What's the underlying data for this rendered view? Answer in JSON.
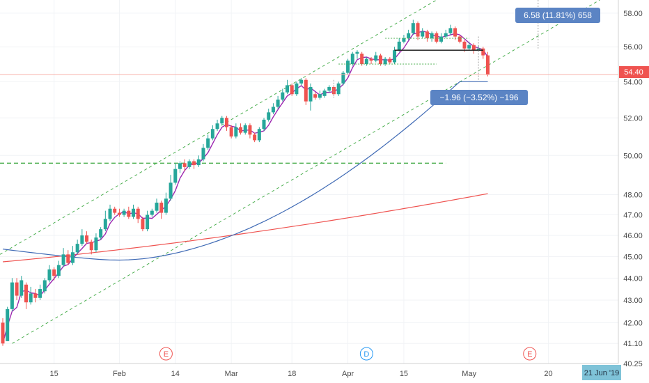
{
  "chart_data": {
    "type": "candlestick",
    "price_scale": "log",
    "ylim": [
      40.25,
      58.8
    ],
    "y_ticks": [
      "58.00",
      "56.00",
      "54.00",
      "52.00",
      "50.00",
      "48.00",
      "47.00",
      "46.00",
      "45.00",
      "44.00",
      "43.00",
      "42.00",
      "41.10",
      "40.25"
    ],
    "x_tick_labels": [
      "15",
      "Feb",
      "14",
      "Mar",
      "18",
      "Apr",
      "15",
      "May",
      "20"
    ],
    "x_tick_bars": [
      11,
      25,
      37,
      49,
      62,
      74,
      86,
      100,
      117
    ],
    "bars_total": 133,
    "current_price": "54.40",
    "current_price_value": 54.4,
    "date_badge": "21 Jun '19",
    "measure_up": "6.58 (11.81%) 658",
    "measure_down": "−1.96 (−3.52%) −196",
    "events": [
      {
        "label": "E",
        "bar": 35,
        "color": "#ef5350"
      },
      {
        "label": "D",
        "bar": 78,
        "color": "#2196f3"
      },
      {
        "label": "E",
        "bar": 113,
        "color": "#ef5350"
      }
    ],
    "colors": {
      "up": "#26a69a",
      "down": "#ef5350",
      "ma_short": "#9c27b0",
      "ma_mid": "#3f6ab5",
      "ma_long": "#ef5350",
      "channel": "#4caf50",
      "badge_price": "#ef5350",
      "badge_measure": "#5b84c4",
      "badge_date": "#7fc3d8"
    },
    "candles": [
      [
        42.0,
        41.1,
        42.2,
        41.0
      ],
      [
        41.2,
        42.6,
        42.7,
        41.2
      ],
      [
        42.6,
        43.8,
        44.0,
        42.5
      ],
      [
        43.8,
        43.2,
        44.0,
        43.0
      ],
      [
        43.2,
        43.9,
        44.1,
        43.1
      ],
      [
        43.7,
        42.9,
        43.8,
        42.6
      ],
      [
        42.9,
        43.3,
        43.6,
        42.8
      ],
      [
        43.3,
        43.1,
        43.5,
        42.9
      ],
      [
        43.1,
        43.5,
        43.7,
        43.0
      ],
      [
        43.4,
        43.9,
        44.0,
        43.3
      ],
      [
        43.9,
        44.4,
        44.6,
        43.8
      ],
      [
        44.4,
        44.1,
        44.5,
        43.9
      ],
      [
        44.1,
        44.6,
        44.8,
        44.0
      ],
      [
        44.6,
        45.1,
        45.4,
        44.5
      ],
      [
        45.1,
        44.7,
        45.3,
        44.6
      ],
      [
        44.7,
        45.2,
        45.5,
        44.6
      ],
      [
        45.2,
        45.6,
        45.8,
        45.1
      ],
      [
        45.6,
        46.0,
        46.3,
        45.5
      ],
      [
        46.0,
        45.7,
        46.2,
        45.6
      ],
      [
        45.7,
        45.3,
        45.8,
        45.1
      ],
      [
        45.3,
        45.9,
        46.1,
        45.2
      ],
      [
        45.9,
        46.3,
        46.4,
        45.8
      ],
      [
        46.3,
        46.8,
        47.2,
        46.2
      ],
      [
        46.8,
        47.3,
        47.5,
        46.7
      ],
      [
        47.3,
        47.1,
        47.4,
        47.0
      ],
      [
        47.1,
        47.0,
        47.3,
        46.9
      ],
      [
        47.0,
        47.2,
        47.3,
        46.9
      ],
      [
        47.2,
        46.9,
        47.4,
        46.8
      ],
      [
        46.9,
        47.3,
        47.5,
        46.8
      ],
      [
        47.3,
        46.8,
        47.4,
        46.6
      ],
      [
        46.8,
        46.3,
        46.9,
        46.2
      ],
      [
        46.3,
        47.0,
        47.2,
        46.2
      ],
      [
        47.0,
        47.2,
        47.3,
        46.9
      ],
      [
        47.2,
        47.6,
        47.8,
        47.1
      ],
      [
        47.6,
        47.1,
        47.7,
        46.8
      ],
      [
        47.1,
        47.8,
        48.1,
        47.0
      ],
      [
        47.8,
        48.6,
        49.0,
        47.7
      ],
      [
        48.6,
        49.3,
        49.6,
        48.5
      ],
      [
        49.3,
        49.6,
        49.7,
        49.1
      ],
      [
        49.6,
        49.4,
        49.8,
        49.2
      ],
      [
        49.4,
        49.7,
        49.8,
        49.3
      ],
      [
        49.7,
        49.5,
        49.8,
        49.3
      ],
      [
        49.5,
        49.8,
        50.0,
        49.4
      ],
      [
        49.8,
        50.4,
        50.6,
        49.7
      ],
      [
        50.4,
        50.9,
        51.1,
        50.3
      ],
      [
        50.9,
        51.4,
        51.6,
        50.8
      ],
      [
        51.4,
        51.7,
        51.9,
        51.3
      ],
      [
        51.7,
        52.0,
        52.1,
        51.6
      ],
      [
        52.0,
        51.5,
        52.1,
        51.3
      ],
      [
        51.5,
        51.0,
        51.6,
        50.9
      ],
      [
        51.0,
        51.5,
        51.7,
        50.9
      ],
      [
        51.5,
        51.2,
        51.7,
        51.1
      ],
      [
        51.2,
        51.6,
        51.7,
        51.1
      ],
      [
        51.6,
        51.1,
        51.7,
        50.9
      ],
      [
        51.1,
        50.8,
        51.2,
        50.7
      ],
      [
        50.8,
        51.4,
        51.5,
        50.7
      ],
      [
        51.4,
        51.9,
        52.0,
        51.3
      ],
      [
        51.9,
        52.3,
        52.5,
        51.8
      ],
      [
        52.3,
        52.6,
        52.8,
        52.2
      ],
      [
        52.6,
        53.0,
        53.2,
        52.5
      ],
      [
        53.0,
        53.4,
        53.6,
        52.9
      ],
      [
        53.4,
        53.8,
        54.1,
        53.3
      ],
      [
        53.8,
        53.3,
        53.9,
        53.2
      ],
      [
        53.3,
        53.9,
        54.0,
        53.2
      ],
      [
        53.9,
        54.1,
        54.2,
        53.8
      ],
      [
        54.1,
        52.9,
        54.2,
        52.7
      ],
      [
        52.9,
        53.7,
        53.9,
        52.4
      ],
      [
        53.3,
        53.1,
        53.4,
        53.0
      ],
      [
        53.1,
        53.3,
        53.5,
        53.0
      ],
      [
        53.2,
        53.5,
        53.6,
        53.1
      ],
      [
        53.5,
        53.7,
        53.8,
        53.4
      ],
      [
        53.7,
        53.3,
        53.8,
        53.2
      ],
      [
        53.3,
        53.9,
        54.0,
        53.2
      ],
      [
        53.9,
        54.5,
        54.6,
        53.8
      ],
      [
        54.5,
        55.2,
        55.3,
        54.4
      ],
      [
        55.0,
        55.6,
        55.7,
        54.9
      ],
      [
        55.6,
        55.7,
        55.8,
        55.3
      ],
      [
        55.6,
        55.0,
        55.7,
        54.9
      ],
      [
        55.0,
        55.3,
        55.4,
        54.9
      ],
      [
        55.3,
        55.2,
        55.4,
        55.0
      ],
      [
        55.2,
        55.5,
        55.7,
        55.1
      ],
      [
        55.5,
        55.0,
        55.6,
        54.9
      ],
      [
        55.0,
        55.3,
        55.4,
        54.9
      ],
      [
        55.3,
        55.1,
        55.4,
        55.0
      ],
      [
        55.1,
        55.8,
        56.0,
        55.0
      ],
      [
        55.8,
        56.3,
        56.5,
        55.7
      ],
      [
        56.3,
        56.5,
        56.7,
        56.2
      ],
      [
        56.5,
        56.8,
        57.0,
        56.4
      ],
      [
        56.8,
        57.4,
        57.6,
        56.7
      ],
      [
        57.4,
        56.6,
        57.5,
        56.4
      ],
      [
        56.6,
        56.9,
        57.1,
        56.5
      ],
      [
        56.9,
        56.5,
        57.0,
        56.3
      ],
      [
        56.5,
        56.8,
        56.9,
        56.3
      ],
      [
        56.8,
        56.3,
        56.9,
        56.2
      ],
      [
        56.3,
        56.6,
        56.8,
        56.2
      ],
      [
        56.6,
        56.8,
        57.0,
        56.5
      ],
      [
        56.8,
        57.1,
        57.3,
        56.7
      ],
      [
        57.1,
        56.6,
        57.2,
        56.4
      ],
      [
        56.6,
        56.3,
        56.7,
        56.2
      ],
      [
        56.3,
        55.9,
        56.4,
        55.7
      ],
      [
        55.9,
        56.1,
        56.3,
        55.8
      ],
      [
        56.1,
        55.8,
        56.2,
        55.6
      ],
      [
        55.8,
        55.9,
        56.1,
        55.7
      ],
      [
        55.9,
        55.5,
        56.0,
        55.3
      ],
      [
        55.5,
        54.4,
        55.7,
        54.3
      ]
    ]
  }
}
